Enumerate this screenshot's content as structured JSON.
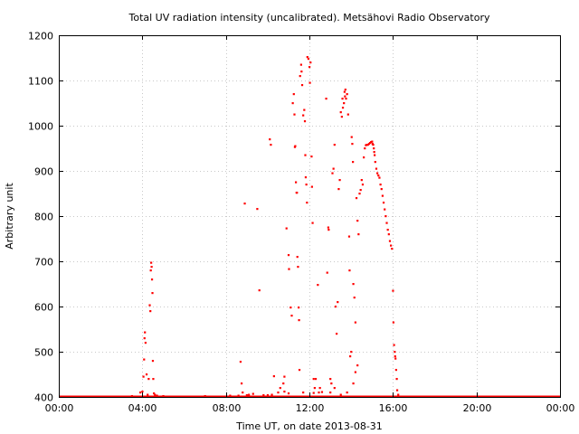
{
  "chart_data": {
    "type": "scatter",
    "title": "Total UV radiation intensity (uncalibrated). Metsähovi Radio Observatory",
    "xlabel": "Time UT, on date 2013-08-31",
    "ylabel": "Arbitrary unit",
    "xlim": [
      0,
      24
    ],
    "ylim": [
      400,
      1200
    ],
    "xticks": [
      0,
      4,
      8,
      12,
      16,
      20,
      24
    ],
    "xtick_labels": [
      "00:00",
      "04:00",
      "08:00",
      "12:00",
      "16:00",
      "20:00",
      "00:00"
    ],
    "yticks": [
      400,
      500,
      600,
      700,
      800,
      900,
      1000,
      1100,
      1200
    ],
    "ytick_labels": [
      "400",
      "500",
      "600",
      "700",
      "800",
      "900",
      "1000",
      "1100",
      "1200"
    ],
    "grid": true,
    "color": "#ff0000",
    "series": [
      {
        "values": [
          [
            3.9,
            410
          ],
          [
            4.0,
            412
          ],
          [
            4.05,
            445
          ],
          [
            4.08,
            483
          ],
          [
            4.1,
            530
          ],
          [
            4.12,
            543
          ],
          [
            4.15,
            520
          ],
          [
            4.2,
            450
          ],
          [
            4.25,
            405
          ],
          [
            4.3,
            440
          ],
          [
            4.35,
            603
          ],
          [
            4.38,
            590
          ],
          [
            4.4,
            680
          ],
          [
            4.42,
            697
          ],
          [
            4.44,
            688
          ],
          [
            4.46,
            660
          ],
          [
            4.48,
            630
          ],
          [
            4.5,
            480
          ],
          [
            4.52,
            440
          ],
          [
            4.55,
            408
          ],
          [
            4.6,
            405
          ],
          [
            4.7,
            403
          ],
          [
            8.6,
            403
          ],
          [
            8.7,
            478
          ],
          [
            8.75,
            430
          ],
          [
            8.8,
            410
          ],
          [
            8.9,
            828
          ],
          [
            9.5,
            816
          ],
          [
            9.6,
            636
          ],
          [
            9.1,
            405
          ],
          [
            9.3,
            407
          ],
          [
            9.8,
            404
          ],
          [
            10.1,
            970
          ],
          [
            10.15,
            958
          ],
          [
            10.2,
            405
          ],
          [
            10.3,
            446
          ],
          [
            10.5,
            410
          ],
          [
            10.6,
            420
          ],
          [
            10.75,
            430
          ],
          [
            10.8,
            445
          ],
          [
            10.9,
            773
          ],
          [
            11.0,
            714
          ],
          [
            11.02,
            683
          ],
          [
            11.1,
            598
          ],
          [
            11.15,
            580
          ],
          [
            11.2,
            1050
          ],
          [
            11.25,
            1070
          ],
          [
            11.28,
            1025
          ],
          [
            11.3,
            953
          ],
          [
            11.32,
            955
          ],
          [
            11.35,
            875
          ],
          [
            11.38,
            852
          ],
          [
            11.4,
            852
          ],
          [
            11.42,
            710
          ],
          [
            11.45,
            688
          ],
          [
            11.48,
            598
          ],
          [
            11.5,
            570
          ],
          [
            11.52,
            460
          ],
          [
            11.55,
            1110
          ],
          [
            11.6,
            1135
          ],
          [
            11.62,
            1120
          ],
          [
            11.65,
            1090
          ],
          [
            11.7,
            1023
          ],
          [
            11.75,
            1035
          ],
          [
            11.78,
            1010
          ],
          [
            11.8,
            935
          ],
          [
            11.82,
            886
          ],
          [
            11.85,
            870
          ],
          [
            11.88,
            830
          ],
          [
            11.9,
            1152
          ],
          [
            11.95,
            1148
          ],
          [
            12.0,
            1130
          ],
          [
            12.02,
            1095
          ],
          [
            12.05,
            1140
          ],
          [
            12.1,
            932
          ],
          [
            12.12,
            865
          ],
          [
            12.15,
            785
          ],
          [
            12.2,
            440
          ],
          [
            12.25,
            420
          ],
          [
            12.3,
            440
          ],
          [
            12.4,
            648
          ],
          [
            12.45,
            410
          ],
          [
            12.5,
            420
          ],
          [
            12.8,
            1060
          ],
          [
            12.85,
            675
          ],
          [
            12.9,
            775
          ],
          [
            12.92,
            770
          ],
          [
            13.0,
            440
          ],
          [
            13.05,
            430
          ],
          [
            13.1,
            895
          ],
          [
            13.15,
            905
          ],
          [
            13.2,
            958
          ],
          [
            13.25,
            600
          ],
          [
            13.3,
            540
          ],
          [
            13.35,
            610
          ],
          [
            13.4,
            860
          ],
          [
            13.45,
            880
          ],
          [
            13.5,
            1030
          ],
          [
            13.55,
            1020
          ],
          [
            13.58,
            1060
          ],
          [
            13.6,
            1040
          ],
          [
            13.65,
            1050
          ],
          [
            13.68,
            1075
          ],
          [
            13.7,
            1065
          ],
          [
            13.72,
            1080
          ],
          [
            13.75,
            1060
          ],
          [
            13.8,
            1070
          ],
          [
            13.85,
            1025
          ],
          [
            13.9,
            755
          ],
          [
            13.92,
            680
          ],
          [
            13.95,
            490
          ],
          [
            14.0,
            500
          ],
          [
            14.02,
            975
          ],
          [
            14.05,
            960
          ],
          [
            14.08,
            920
          ],
          [
            14.1,
            650
          ],
          [
            14.15,
            620
          ],
          [
            14.2,
            565
          ],
          [
            14.25,
            840
          ],
          [
            14.3,
            790
          ],
          [
            14.35,
            760
          ],
          [
            14.4,
            850
          ],
          [
            14.45,
            858
          ],
          [
            14.5,
            880
          ],
          [
            14.55,
            870
          ],
          [
            14.6,
            930
          ],
          [
            14.65,
            950
          ],
          [
            14.7,
            957
          ],
          [
            14.75,
            958
          ],
          [
            14.8,
            958
          ],
          [
            14.85,
            960
          ],
          [
            14.9,
            962
          ],
          [
            14.95,
            964
          ],
          [
            15.0,
            965
          ],
          [
            15.02,
            960
          ],
          [
            15.05,
            958
          ],
          [
            15.08,
            950
          ],
          [
            15.1,
            942
          ],
          [
            15.12,
            935
          ],
          [
            15.15,
            920
          ],
          [
            15.2,
            905
          ],
          [
            15.25,
            895
          ],
          [
            15.3,
            890
          ],
          [
            15.35,
            885
          ],
          [
            15.4,
            870
          ],
          [
            15.45,
            860
          ],
          [
            15.5,
            845
          ],
          [
            15.55,
            830
          ],
          [
            15.6,
            815
          ],
          [
            15.65,
            800
          ],
          [
            15.7,
            785
          ],
          [
            15.75,
            770
          ],
          [
            15.8,
            760
          ],
          [
            15.85,
            745
          ],
          [
            15.9,
            735
          ],
          [
            15.95,
            728
          ],
          [
            16.0,
            635
          ],
          [
            16.02,
            565
          ],
          [
            16.05,
            515
          ],
          [
            16.08,
            500
          ],
          [
            16.1,
            490
          ],
          [
            16.12,
            485
          ],
          [
            16.15,
            460
          ],
          [
            16.18,
            440
          ],
          [
            16.2,
            415
          ],
          [
            16.25,
            405
          ],
          [
            14.3,
            470
          ],
          [
            14.2,
            455
          ],
          [
            13.2,
            420
          ],
          [
            13.5,
            405
          ],
          [
            13.0,
            410
          ],
          [
            11.0,
            408
          ],
          [
            10.8,
            412
          ],
          [
            11.7,
            410
          ],
          [
            12.2,
            409
          ],
          [
            12.6,
            411
          ],
          [
            13.8,
            410
          ],
          [
            14.1,
            430
          ],
          [
            10.0,
            404
          ],
          [
            9.0,
            404
          ],
          [
            8.2,
            403
          ],
          [
            7.0,
            402
          ],
          [
            3.5,
            402
          ],
          [
            5.0,
            402
          ],
          [
            17.0,
            401
          ]
        ]
      }
    ]
  }
}
